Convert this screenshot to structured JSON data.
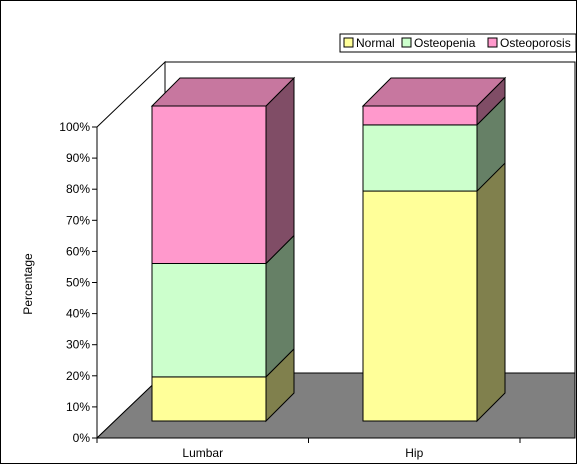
{
  "chart_data": {
    "type": "bar",
    "stacked": true,
    "three_d": true,
    "categories": [
      "Lumbar",
      "Hip"
    ],
    "series": [
      {
        "name": "Normal",
        "values": [
          14,
          73
        ],
        "color": "#FFFF99"
      },
      {
        "name": "Osteopenia",
        "values": [
          36,
          21
        ],
        "color": "#CCFFCC"
      },
      {
        "name": "Osteoporosis",
        "values": [
          50,
          6
        ],
        "color": "#FF99CC"
      }
    ],
    "title": "",
    "xlabel": "",
    "ylabel": "Percentage",
    "ylim": [
      0,
      100
    ],
    "ytick_step": 10,
    "ytick_format": "percent",
    "legend_position": "top-right",
    "grid": false,
    "floor_color": "#808080"
  }
}
